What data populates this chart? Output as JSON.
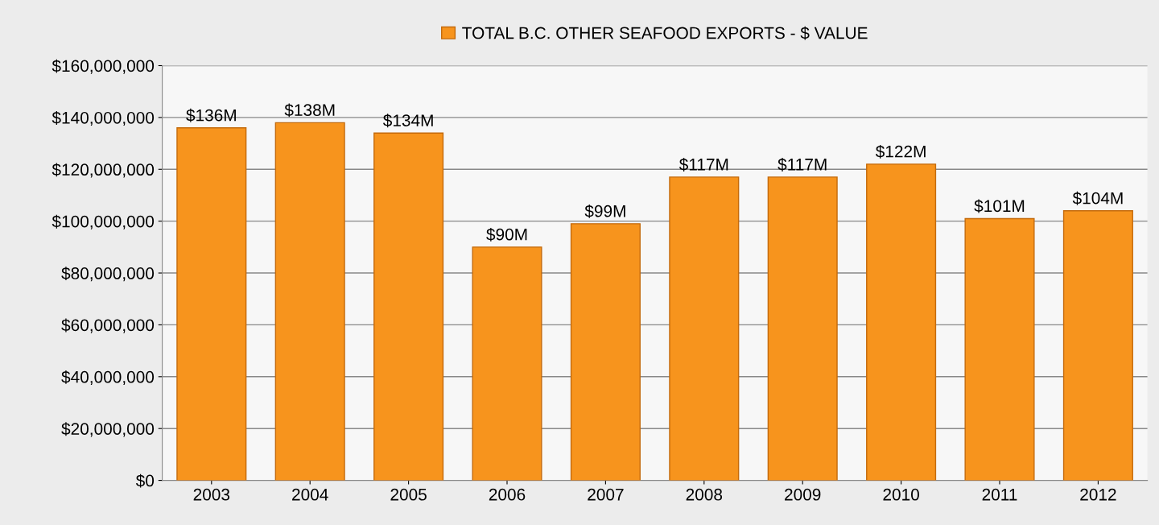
{
  "chart_data": {
    "type": "bar",
    "categories": [
      "2003",
      "2004",
      "2005",
      "2006",
      "2007",
      "2008",
      "2009",
      "2010",
      "2011",
      "2012"
    ],
    "series": [
      {
        "name": "TOTAL B.C. OTHER SEAFOOD EXPORTS - $ VALUE",
        "color": "#f7941d",
        "values": [
          136000000,
          138000000,
          134000000,
          90000000,
          99000000,
          117000000,
          117000000,
          122000000,
          101000000,
          104000000
        ],
        "value_labels": [
          "$136M",
          "$138M",
          "$134M",
          "$90M",
          "$99M",
          "$117M",
          "$117M",
          "$122M",
          "$101M",
          "$104M"
        ]
      }
    ],
    "ylim": [
      0,
      160000000
    ],
    "yticks": [
      {
        "value": 0,
        "label": "$0"
      },
      {
        "value": 20000000,
        "label": "$20,000,000"
      },
      {
        "value": 40000000,
        "label": "$40,000,000"
      },
      {
        "value": 60000000,
        "label": "$60,000,000"
      },
      {
        "value": 80000000,
        "label": "$80,000,000"
      },
      {
        "value": 100000000,
        "label": "$100,000,000"
      },
      {
        "value": 120000000,
        "label": "$120,000,000"
      },
      {
        "value": 140000000,
        "label": "$140,000,000"
      },
      {
        "value": 160000000,
        "label": "$160,000,000"
      }
    ],
    "grid": "y",
    "legend": "top"
  }
}
